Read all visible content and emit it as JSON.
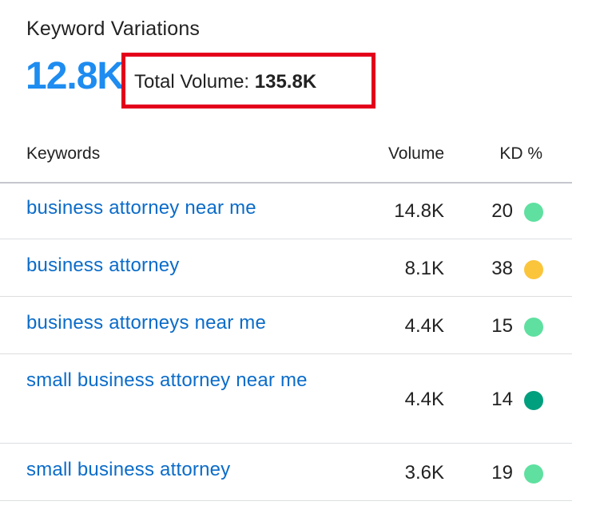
{
  "widget": {
    "title": "Keyword Variations",
    "count": "12.8K",
    "total_volume_label": "Total Volume:",
    "total_volume_value": "135.8K"
  },
  "table": {
    "headers": {
      "keywords": "Keywords",
      "volume": "Volume",
      "kd": "KD %"
    },
    "rows": [
      {
        "keyword": "business attorney near me",
        "volume": "14.8K",
        "kd": "20",
        "kd_color": "#5fe0a0"
      },
      {
        "keyword": "business attorney",
        "volume": "8.1K",
        "kd": "38",
        "kd_color": "#fbc53b"
      },
      {
        "keyword": "business attorneys near me",
        "volume": "4.4K",
        "kd": "15",
        "kd_color": "#5fe0a0"
      },
      {
        "keyword": "small business attorney near me",
        "volume": "4.4K",
        "kd": "14",
        "kd_color": "#009f7e"
      },
      {
        "keyword": "small business attorney",
        "volume": "3.6K",
        "kd": "19",
        "kd_color": "#5fe0a0"
      }
    ]
  },
  "colors": {
    "accent_blue": "#1e8cf0",
    "link_blue": "#0b6cc9",
    "highlight_red": "#e4001b"
  }
}
